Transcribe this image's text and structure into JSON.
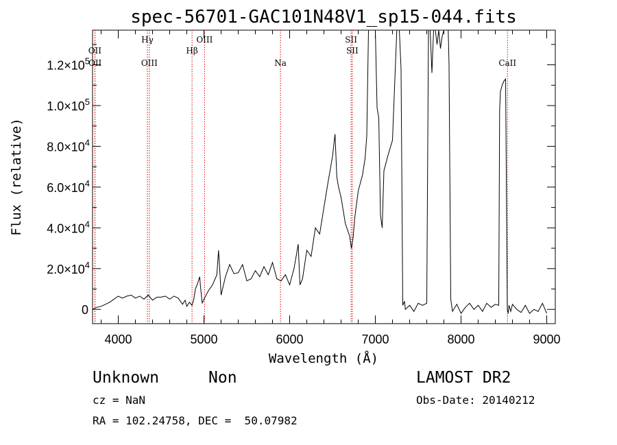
{
  "chart_data": {
    "type": "line",
    "title": "spec-56701-GAC101N48V1_sp15-044.fits",
    "xlabel": "Wavelength (Å)",
    "ylabel": "Flux (relative)",
    "xlim": [
      3700,
      9100
    ],
    "ylim": [
      -7000,
      137000
    ],
    "x_ticks": [
      4000,
      5000,
      6000,
      7000,
      8000,
      9000
    ],
    "x_tick_labels": [
      "4000",
      "5000",
      "6000",
      "7000",
      "8000",
      "9000"
    ],
    "y_ticks": [
      {
        "value": 0,
        "mantissa": "0",
        "exponent": ""
      },
      {
        "value": 20000,
        "mantissa": "2.0×10",
        "exponent": "4"
      },
      {
        "value": 40000,
        "mantissa": "4.0×10",
        "exponent": "4"
      },
      {
        "value": 60000,
        "mantissa": "6.0×10",
        "exponent": "4"
      },
      {
        "value": 80000,
        "mantissa": "8.0×10",
        "exponent": "4"
      },
      {
        "value": 100000,
        "mantissa": "1.0×10",
        "exponent": "5"
      },
      {
        "value": 120000,
        "mantissa": "1.2×10",
        "exponent": "5"
      }
    ],
    "series": [
      {
        "x": [
          3700,
          3750,
          3800,
          3850,
          3900,
          3950,
          4000,
          4050,
          4100,
          4150,
          4200,
          4250,
          4300,
          4350,
          4400,
          4450,
          4500,
          4550,
          4600,
          4650,
          4700,
          4750,
          4780,
          4800,
          4830,
          4860,
          4880,
          4900,
          4920,
          4950,
          4960,
          4980,
          5000,
          5050,
          5100,
          5150,
          5170,
          5190,
          5200,
          5250,
          5300,
          5350,
          5400,
          5450,
          5500,
          5550,
          5600,
          5650,
          5700,
          5750,
          5800,
          5850,
          5900,
          5950,
          6000,
          6050,
          6080,
          6100,
          6120,
          6150,
          6200,
          6250,
          6300,
          6350,
          6400,
          6450,
          6500,
          6530,
          6550,
          6570,
          6600,
          6650,
          6700,
          6720,
          6740,
          6760,
          6800,
          6850,
          6880,
          6900,
          6920,
          6950,
          6980,
          7000,
          7020,
          7040,
          7060,
          7080,
          7100,
          7150,
          7200,
          7250,
          7280,
          7300,
          7320,
          7340,
          7350,
          7400,
          7450,
          7500,
          7550,
          7600,
          7620,
          7640,
          7660,
          7680,
          7700,
          7720,
          7740,
          7760,
          7780,
          7800,
          7820,
          7840,
          7850,
          7860,
          7870,
          7880,
          7900,
          7950,
          8000,
          8050,
          8100,
          8150,
          8200,
          8250,
          8300,
          8350,
          8400,
          8440,
          8450,
          8460,
          8480,
          8500,
          8520,
          8540,
          8550,
          8560,
          8580,
          8600,
          8650,
          8700,
          8750,
          8800,
          8850,
          8900,
          8950,
          9000
        ],
        "y": [
          0,
          1000,
          1500,
          2500,
          3500,
          5000,
          6500,
          5500,
          6500,
          7000,
          5500,
          6500,
          5000,
          7000,
          4500,
          6000,
          6000,
          6500,
          5000,
          6500,
          5500,
          2500,
          4500,
          1500,
          3500,
          2000,
          4500,
          10000,
          12000,
          16000,
          11000,
          3000,
          5000,
          9000,
          12000,
          17000,
          29000,
          15000,
          7000,
          16000,
          22000,
          17500,
          18000,
          22000,
          14000,
          15000,
          19000,
          16000,
          21000,
          17000,
          23000,
          15000,
          14000,
          17000,
          12000,
          20000,
          27000,
          32000,
          12000,
          15000,
          29000,
          26000,
          40000,
          37000,
          50000,
          63000,
          75000,
          86000,
          65000,
          60000,
          55000,
          42000,
          36000,
          30000,
          35000,
          45000,
          58000,
          66000,
          74000,
          85000,
          137000,
          137000,
          137000,
          137000,
          99000,
          94000,
          46000,
          40000,
          68000,
          76000,
          83000,
          137000,
          137000,
          118000,
          2000,
          4000,
          0,
          2000,
          -1000,
          3000,
          2000,
          3000,
          137000,
          137000,
          116000,
          137000,
          137000,
          130000,
          137000,
          128000,
          134000,
          137000,
          137000,
          137000,
          137000,
          120000,
          60000,
          5000,
          -1000,
          2500,
          -2000,
          1000,
          3000,
          0,
          2000,
          -1000,
          3000,
          1000,
          2500,
          2000,
          98000,
          107000,
          110000,
          112000,
          113000,
          0,
          -2000,
          2000,
          -1000,
          2500,
          0,
          -1500,
          2000,
          -2000,
          0,
          -1000,
          3000,
          -2000
        ]
      }
    ],
    "emission_lines": [
      {
        "label": "OII",
        "x": 3727,
        "row": "top"
      },
      {
        "label": "OII",
        "x": 3729,
        "row": "mid"
      },
      {
        "label": "Hγ",
        "x": 4340,
        "row": "high"
      },
      {
        "label": "OIII",
        "x": 4363,
        "row": "mid"
      },
      {
        "label": "Hβ",
        "x": 4861,
        "row": "top"
      },
      {
        "label": "OIII",
        "x": 5007,
        "row": "high"
      },
      {
        "label": "Na",
        "x": 5893,
        "row": "mid"
      },
      {
        "label": "SII",
        "x": 6717,
        "row": "high"
      },
      {
        "label": "SII",
        "x": 6731,
        "row": "top"
      },
      {
        "label": "CaII",
        "x": 8542,
        "row": "mid"
      }
    ]
  },
  "info": {
    "class_label": "Unknown",
    "subclass_label": "Non",
    "survey_label": "LAMOST DR2",
    "cz_text": "cz = NaN",
    "obs_date_text": "Obs-Date: 20140212",
    "radec_text": "RA = 102.24758, DEC =  50.07982"
  }
}
